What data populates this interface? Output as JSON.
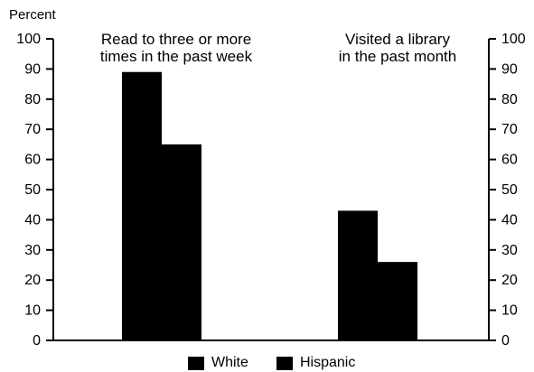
{
  "chart_data": {
    "type": "bar",
    "ylabel": "Percent",
    "ylim": [
      0,
      100
    ],
    "yticks": [
      0,
      10,
      20,
      30,
      40,
      50,
      60,
      70,
      80,
      90,
      100
    ],
    "categories": [
      "Read to three or more times in the past week",
      "Visited a library in the past month"
    ],
    "category_lines": [
      [
        "Read to three or more",
        "times in the past week"
      ],
      [
        "Visited a library",
        "in the past month"
      ]
    ],
    "series": [
      {
        "name": "White",
        "values": [
          89,
          43
        ],
        "color": "#000000"
      },
      {
        "name": "Hispanic",
        "values": [
          65,
          26
        ],
        "color": "#000000"
      }
    ],
    "grid": false,
    "legend_position": "bottom"
  }
}
